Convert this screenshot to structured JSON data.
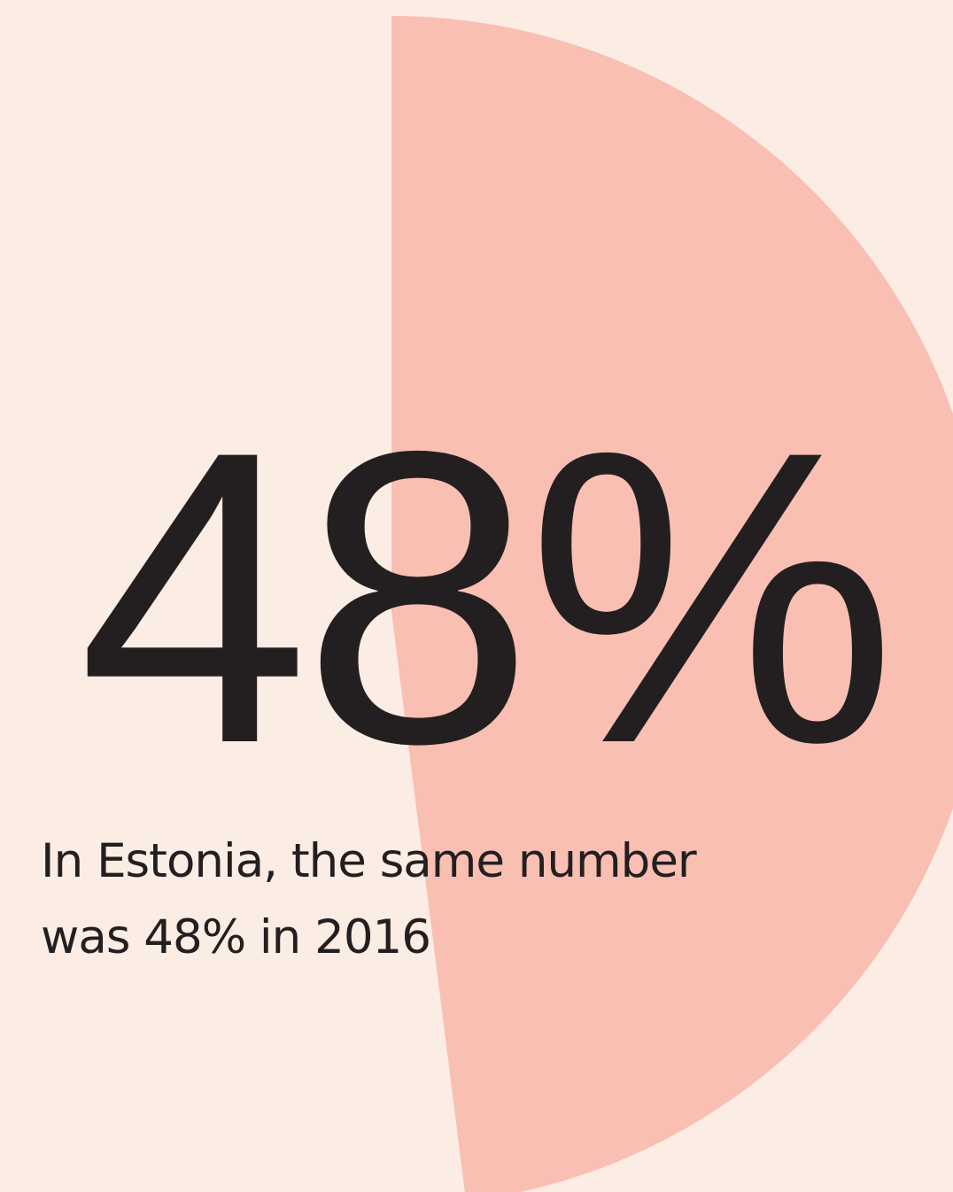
{
  "stat": {
    "value_text": "48%",
    "fraction": 0.48
  },
  "caption": {
    "line1": "In Estonia, the same number",
    "line2": "was 48% in 2016"
  },
  "colors": {
    "background": "#fbece4",
    "slice": "#f9bfb2",
    "text": "#231f20"
  }
}
